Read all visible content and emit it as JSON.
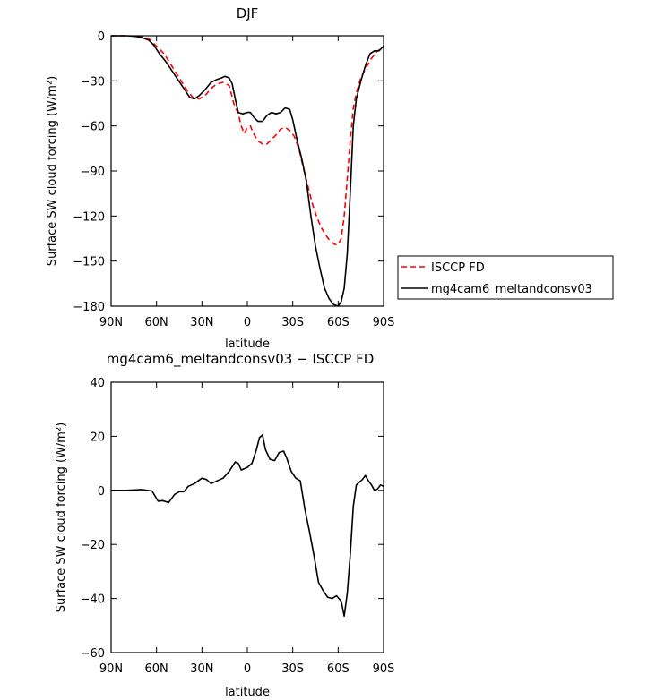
{
  "chart_data": [
    {
      "type": "line",
      "title": "DJF",
      "xlabel": "latitude",
      "ylabel": "Surface SW cloud forcing (W/m²)",
      "xlim": [
        90,
        -90
      ],
      "ylim": [
        -180,
        0
      ],
      "xticks": [
        90,
        60,
        30,
        0,
        -30,
        -60,
        -90
      ],
      "xtick_labels": [
        "90N",
        "60N",
        "30N",
        "0",
        "30S",
        "60S",
        "90S"
      ],
      "yticks": [
        0,
        -30,
        -60,
        -90,
        -120,
        -150,
        -180
      ],
      "ytick_labels": [
        "0",
        "−30",
        "−60",
        "−90",
        "−120",
        "−150",
        "−180"
      ],
      "legend_placement": "right, outside plot",
      "series": [
        {
          "name": "ISCCP FD",
          "color": "#ff0000",
          "style": "dashed",
          "points": [
            [
              90,
              0
            ],
            [
              80,
              0
            ],
            [
              70,
              -0.5
            ],
            [
              65,
              -2
            ],
            [
              60,
              -7
            ],
            [
              55,
              -12
            ],
            [
              50,
              -20
            ],
            [
              45,
              -28
            ],
            [
              40,
              -36
            ],
            [
              36,
              -41
            ],
            [
              32,
              -42
            ],
            [
              28,
              -40
            ],
            [
              24,
              -35
            ],
            [
              20,
              -32
            ],
            [
              16,
              -31
            ],
            [
              12,
              -33
            ],
            [
              9,
              -45
            ],
            [
              6,
              -52
            ],
            [
              4,
              -60
            ],
            [
              2,
              -65
            ],
            [
              0,
              -61
            ],
            [
              -2,
              -60
            ],
            [
              -4,
              -65
            ],
            [
              -7,
              -70
            ],
            [
              -10,
              -72
            ],
            [
              -13,
              -72
            ],
            [
              -16,
              -69
            ],
            [
              -19,
              -66
            ],
            [
              -22,
              -62
            ],
            [
              -25,
              -61
            ],
            [
              -28,
              -63
            ],
            [
              -31,
              -67
            ],
            [
              -34,
              -75
            ],
            [
              -37,
              -88
            ],
            [
              -40,
              -100
            ],
            [
              -43,
              -112
            ],
            [
              -46,
              -121
            ],
            [
              -49,
              -128
            ],
            [
              -52,
              -133
            ],
            [
              -55,
              -137
            ],
            [
              -58,
              -139
            ],
            [
              -60,
              -139
            ],
            [
              -62,
              -135
            ],
            [
              -64,
              -120
            ],
            [
              -66,
              -95
            ],
            [
              -68,
              -70
            ],
            [
              -70,
              -48
            ],
            [
              -72,
              -38
            ],
            [
              -75,
              -28
            ],
            [
              -78,
              -22
            ],
            [
              -82,
              -15
            ],
            [
              -86,
              -10
            ],
            [
              -90,
              -8
            ]
          ]
        },
        {
          "name": "mg4cam6_meltandconsv03",
          "color": "#000000",
          "style": "solid",
          "points": [
            [
              90,
              0
            ],
            [
              80,
              0
            ],
            [
              75,
              -0.3
            ],
            [
              70,
              -1
            ],
            [
              65,
              -3
            ],
            [
              62,
              -6
            ],
            [
              58,
              -12
            ],
            [
              54,
              -17
            ],
            [
              50,
              -23
            ],
            [
              46,
              -29
            ],
            [
              42,
              -35
            ],
            [
              38,
              -41
            ],
            [
              35,
              -42
            ],
            [
              32,
              -40
            ],
            [
              28,
              -36
            ],
            [
              24,
              -31
            ],
            [
              20,
              -29
            ],
            [
              17,
              -28
            ],
            [
              15,
              -27
            ],
            [
              12,
              -28
            ],
            [
              10,
              -32
            ],
            [
              8,
              -42
            ],
            [
              6,
              -51
            ],
            [
              3,
              -52
            ],
            [
              0,
              -51
            ],
            [
              -2,
              -51
            ],
            [
              -4,
              -54
            ],
            [
              -7,
              -57
            ],
            [
              -10,
              -57
            ],
            [
              -13,
              -53
            ],
            [
              -16,
              -51
            ],
            [
              -19,
              -52
            ],
            [
              -22,
              -51
            ],
            [
              -25,
              -48
            ],
            [
              -28,
              -49
            ],
            [
              -30,
              -56
            ],
            [
              -33,
              -70
            ],
            [
              -36,
              -82
            ],
            [
              -39,
              -97
            ],
            [
              -42,
              -120
            ],
            [
              -45,
              -140
            ],
            [
              -48,
              -155
            ],
            [
              -51,
              -168
            ],
            [
              -54,
              -175
            ],
            [
              -57,
              -179
            ],
            [
              -60,
              -180
            ],
            [
              -62,
              -177
            ],
            [
              -64,
              -168
            ],
            [
              -66,
              -145
            ],
            [
              -68,
              -105
            ],
            [
              -70,
              -60
            ],
            [
              -72,
              -42
            ],
            [
              -75,
              -30
            ],
            [
              -78,
              -20
            ],
            [
              -81,
              -12
            ],
            [
              -84,
              -10
            ],
            [
              -87,
              -10
            ],
            [
              -90,
              -7
            ]
          ]
        }
      ]
    },
    {
      "type": "line",
      "title": "mg4cam6_meltandconsv03 − ISCCP FD",
      "xlabel": "latitude",
      "ylabel": "Surface SW cloud forcing (W/m²)",
      "xlim": [
        90,
        -90
      ],
      "ylim": [
        -60,
        40
      ],
      "xticks": [
        90,
        60,
        30,
        0,
        -30,
        -60,
        -90
      ],
      "xtick_labels": [
        "90N",
        "60N",
        "30N",
        "0",
        "30S",
        "60S",
        "90S"
      ],
      "yticks": [
        40,
        20,
        0,
        -20,
        -40,
        -60
      ],
      "ytick_labels": [
        "40",
        "20",
        "0",
        "−20",
        "−40",
        "−60"
      ],
      "series": [
        {
          "color": "#000000",
          "style": "solid",
          "points": [
            [
              90,
              0
            ],
            [
              80,
              0
            ],
            [
              70,
              0.3
            ],
            [
              63,
              -0.2
            ],
            [
              59,
              -4
            ],
            [
              56,
              -3.8
            ],
            [
              52,
              -4.5
            ],
            [
              48,
              -1.5
            ],
            [
              45,
              -0.5
            ],
            [
              42,
              -0.5
            ],
            [
              39,
              1.5
            ],
            [
              35,
              2.5
            ],
            [
              30,
              4.5
            ],
            [
              27,
              4
            ],
            [
              24,
              2.5
            ],
            [
              20,
              3.5
            ],
            [
              16,
              4.5
            ],
            [
              12,
              7
            ],
            [
              8,
              10.5
            ],
            [
              6,
              10
            ],
            [
              4,
              7.5
            ],
            [
              0,
              8.5
            ],
            [
              -3,
              10
            ],
            [
              -6,
              15
            ],
            [
              -8,
              19.5
            ],
            [
              -10,
              20.5
            ],
            [
              -12,
              15
            ],
            [
              -15,
              11.5
            ],
            [
              -18,
              11
            ],
            [
              -21,
              14
            ],
            [
              -24,
              14.5
            ],
            [
              -26,
              12
            ],
            [
              -29,
              7
            ],
            [
              -32,
              4.5
            ],
            [
              -35,
              3.5
            ],
            [
              -38,
              -7
            ],
            [
              -41,
              -15
            ],
            [
              -44,
              -24
            ],
            [
              -47,
              -34
            ],
            [
              -50,
              -37
            ],
            [
              -53,
              -39.5
            ],
            [
              -56,
              -40
            ],
            [
              -59,
              -39
            ],
            [
              -62,
              -41
            ],
            [
              -64,
              -46.5
            ],
            [
              -66,
              -38
            ],
            [
              -68,
              -24
            ],
            [
              -70,
              -6
            ],
            [
              -72,
              2
            ],
            [
              -74,
              3
            ],
            [
              -76,
              4
            ],
            [
              -78,
              5.5
            ],
            [
              -80,
              3.5
            ],
            [
              -82,
              2
            ],
            [
              -84,
              0
            ],
            [
              -86,
              0.5
            ],
            [
              -88,
              2
            ],
            [
              -90,
              1.5
            ]
          ]
        }
      ]
    }
  ]
}
